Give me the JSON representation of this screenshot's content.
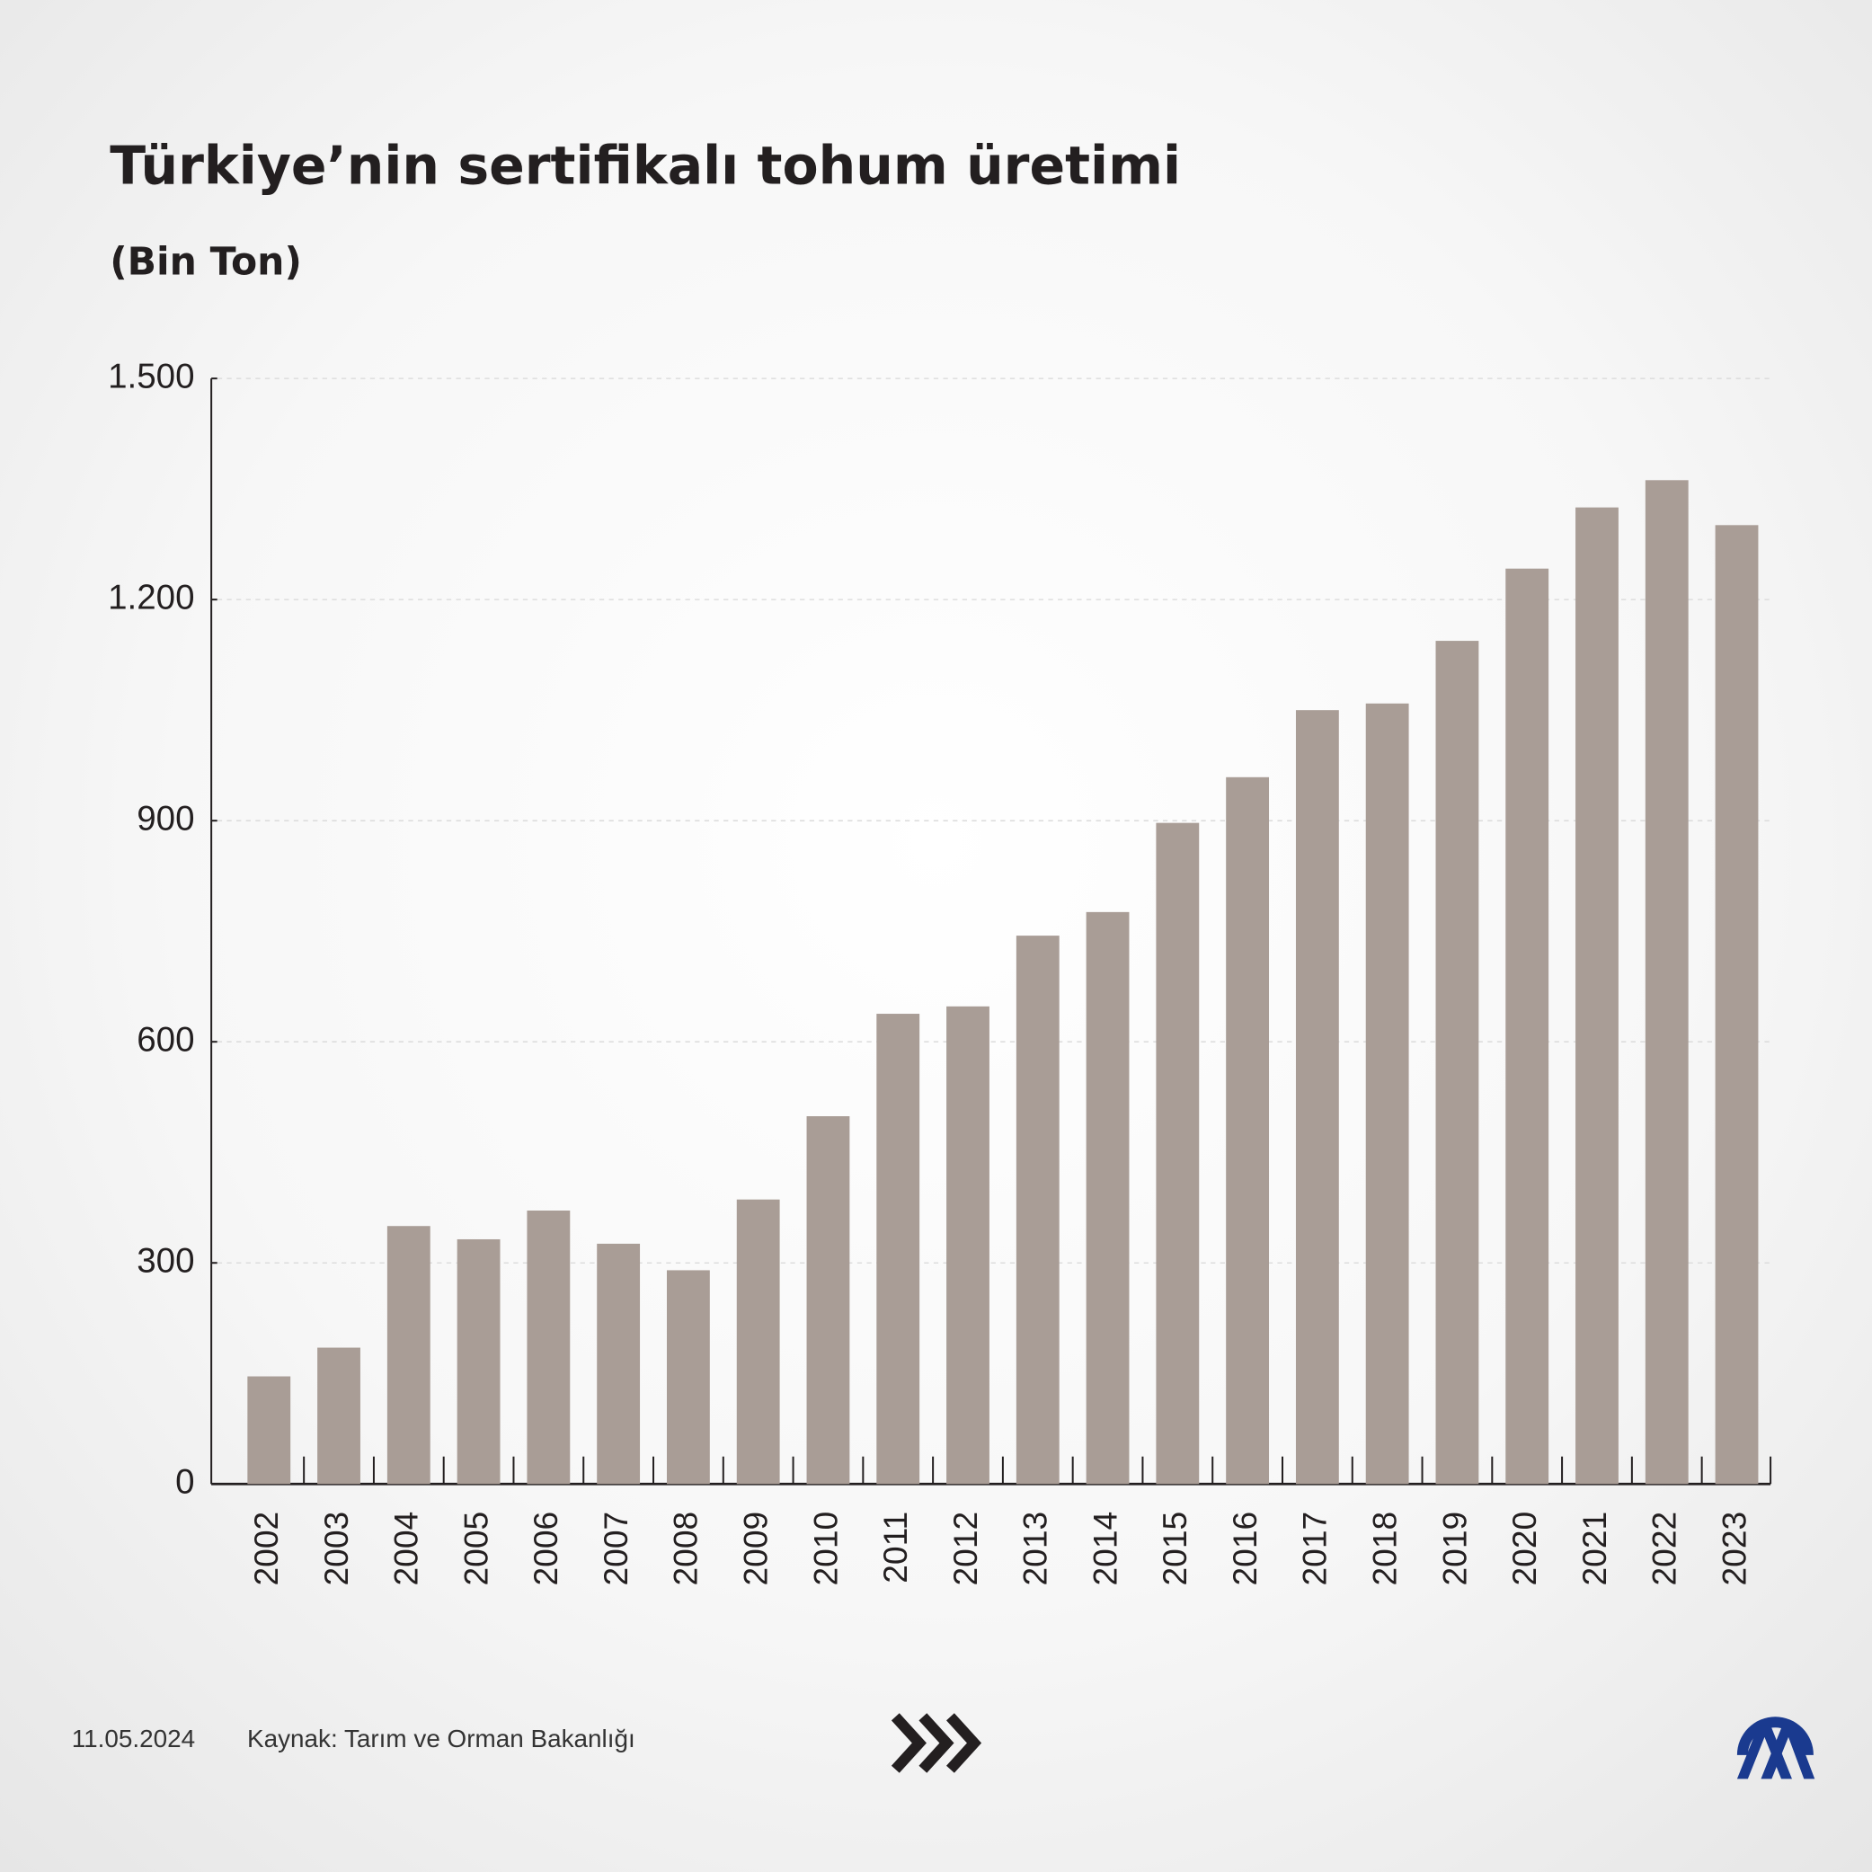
{
  "chart_data": {
    "type": "bar",
    "title": "Türkiye’nin sertifikalı tohum üretimi",
    "subtitle": "(Bin Ton)",
    "categories": [
      "2002",
      "2003",
      "2004",
      "2005",
      "2006",
      "2007",
      "2008",
      "2009",
      "2010",
      "2011",
      "2012",
      "2013",
      "2014",
      "2015",
      "2016",
      "2017",
      "2018",
      "2019",
      "2020",
      "2021",
      "2022",
      "2023"
    ],
    "values": [
      146,
      185,
      350,
      332,
      371,
      326,
      290,
      386,
      499,
      638,
      648,
      744,
      776,
      897,
      959,
      1050,
      1059,
      1144,
      1242,
      1325,
      1362,
      1301
    ],
    "color": "#a99d96",
    "ylim": [
      0,
      1500
    ],
    "yticks": [
      0,
      300,
      600,
      900,
      {
        "value": 1200,
        "label": "1.200"
      },
      {
        "value": 1500,
        "label": "1.500"
      }
    ],
    "grid": true,
    "date": "11.05.2024",
    "source": "Kaynak: Tarım ve Orman Bakanlığı"
  }
}
